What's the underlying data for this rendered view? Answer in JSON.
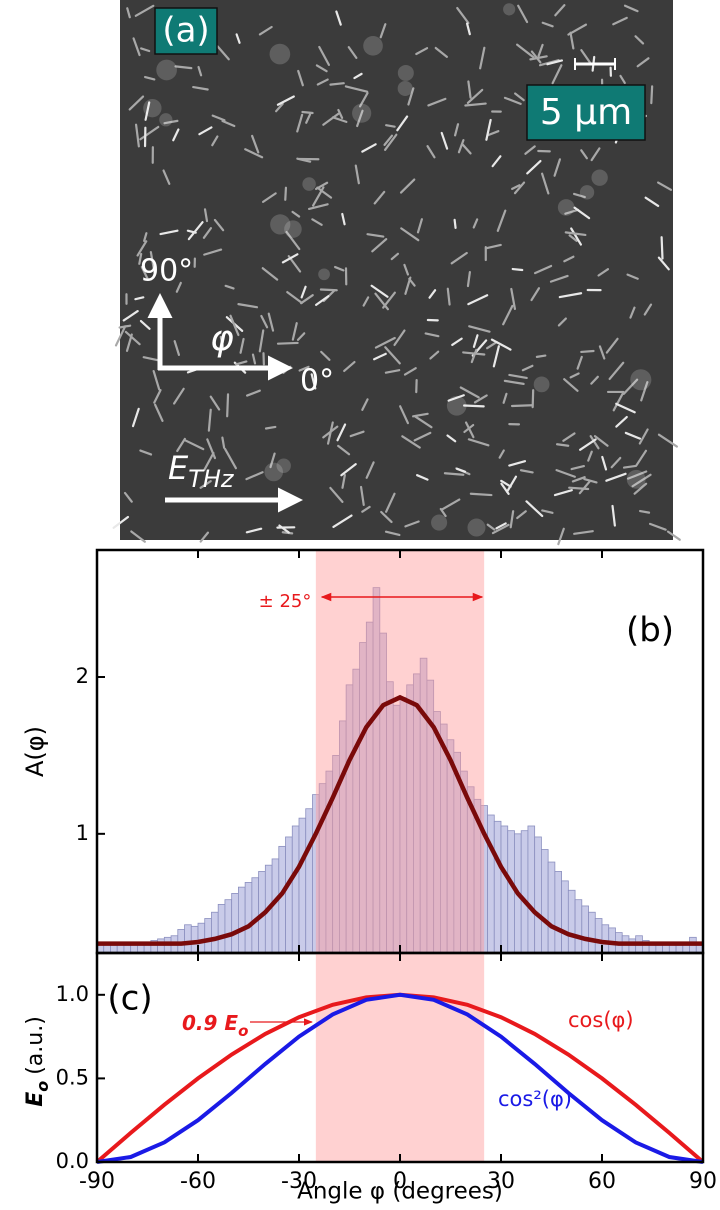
{
  "image_panel": {
    "label": "(a)",
    "scale_bar": "5 μm",
    "axis_90": "90°",
    "axis_phi": "φ",
    "axis_0": "0°",
    "field": "E",
    "field_subscript": "THz"
  },
  "chart_data": [
    {
      "type": "histogram",
      "label": "(b)",
      "y_label": "A(φ)",
      "annotation": "± 25°",
      "highlight": [
        -25,
        25
      ],
      "highlight_color": "#ff9a9a",
      "annotation_color": "#e8191c",
      "bins": [
        -90,
        -88,
        -86,
        -84,
        -82,
        -80,
        -78,
        -76,
        -74,
        -72,
        -70,
        -68,
        -66,
        -64,
        -62,
        -60,
        -58,
        -56,
        -54,
        -52,
        -50,
        -48,
        -46,
        -44,
        -42,
        -40,
        -38,
        -36,
        -34,
        -32,
        -30,
        -28,
        -26,
        -24,
        -22,
        -20,
        -18,
        -16,
        -14,
        -12,
        -10,
        -8,
        -6,
        -4,
        -2,
        0,
        2,
        4,
        6,
        8,
        10,
        12,
        14,
        16,
        18,
        20,
        22,
        24,
        26,
        28,
        30,
        32,
        34,
        36,
        38,
        40,
        42,
        44,
        46,
        48,
        50,
        52,
        54,
        56,
        58,
        60,
        62,
        64,
        66,
        68,
        70,
        72,
        74,
        76,
        78,
        80,
        82,
        84,
        86,
        88,
        90
      ],
      "values": [
        0.3,
        0.3,
        0.29,
        0.3,
        0.29,
        0.3,
        0.31,
        0.3,
        0.32,
        0.33,
        0.34,
        0.35,
        0.39,
        0.42,
        0.41,
        0.43,
        0.46,
        0.5,
        0.55,
        0.58,
        0.62,
        0.66,
        0.69,
        0.72,
        0.76,
        0.8,
        0.84,
        0.92,
        0.98,
        1.05,
        1.1,
        1.16,
        1.25,
        1.32,
        1.4,
        1.5,
        1.72,
        1.95,
        2.05,
        2.22,
        2.35,
        2.57,
        2.28,
        1.97,
        1.82,
        1.87,
        1.95,
        2.02,
        2.12,
        1.98,
        1.78,
        1.7,
        1.6,
        1.52,
        1.4,
        1.3,
        1.22,
        1.18,
        1.12,
        1.08,
        1.05,
        1.02,
        1.0,
        1.02,
        1.05,
        0.98,
        0.9,
        0.82,
        0.76,
        0.7,
        0.64,
        0.58,
        0.54,
        0.5,
        0.46,
        0.42,
        0.4,
        0.37,
        0.35,
        0.33,
        0.35,
        0.32,
        0.31,
        0.3,
        0.3,
        0.31,
        0.29,
        0.3,
        0.34,
        0.3
      ],
      "color": "#c9cbe9",
      "edge_color": "#8b8fbf",
      "fit": {
        "x": [
          -90,
          -85,
          -80,
          -75,
          -70,
          -65,
          -60,
          -55,
          -50,
          -45,
          -40,
          -35,
          -30,
          -25,
          -20,
          -15,
          -10,
          -5,
          0,
          5,
          10,
          15,
          20,
          25,
          30,
          35,
          40,
          45,
          50,
          55,
          60,
          65,
          70,
          75,
          80,
          85,
          90
        ],
        "values": [
          0.3,
          0.3,
          0.3,
          0.3,
          0.3,
          0.3,
          0.31,
          0.33,
          0.36,
          0.41,
          0.5,
          0.62,
          0.79,
          1.0,
          1.23,
          1.47,
          1.68,
          1.82,
          1.87,
          1.82,
          1.68,
          1.47,
          1.23,
          1.0,
          0.79,
          0.62,
          0.5,
          0.41,
          0.36,
          0.33,
          0.31,
          0.3,
          0.3,
          0.3,
          0.3,
          0.3,
          0.3
        ],
        "color": "#7a0a0a"
      },
      "xlim": [
        -90,
        90
      ],
      "xticks": [
        -90,
        -60,
        -30,
        0,
        30,
        60,
        90
      ],
      "ylim": [
        0.24,
        2.81
      ],
      "yticks": [
        1,
        2
      ]
    },
    {
      "type": "line",
      "label": "(c)",
      "y_label": {
        "symbol": "E",
        "subscript": "o",
        "unit": "(a.u.)"
      },
      "x_label": "Angle φ (degrees)",
      "annotation": {
        "text": "0.9 E",
        "subscript": "o"
      },
      "highlight": [
        -25,
        25
      ],
      "highlight_color": "#ff9a9a",
      "x": [
        -90,
        -80,
        -70,
        -60,
        -50,
        -40,
        -30,
        -20,
        -10,
        0,
        10,
        20,
        30,
        40,
        50,
        60,
        70,
        80,
        90
      ],
      "series": [
        {
          "name": "cos(φ)",
          "color": "#e8191c",
          "values": [
            0,
            0.174,
            0.342,
            0.5,
            0.643,
            0.766,
            0.866,
            0.94,
            0.985,
            1,
            0.985,
            0.94,
            0.866,
            0.766,
            0.643,
            0.5,
            0.342,
            0.174,
            0
          ]
        },
        {
          "name": "cos²(φ)",
          "color": "#1a1ae6",
          "values": [
            0,
            0.03,
            0.117,
            0.25,
            0.413,
            0.587,
            0.75,
            0.883,
            0.97,
            1,
            0.97,
            0.883,
            0.75,
            0.587,
            0.413,
            0.25,
            0.117,
            0.03,
            0
          ]
        }
      ],
      "xlim": [
        -90,
        90
      ],
      "xticks": [
        -90,
        -60,
        -30,
        0,
        30,
        60,
        90
      ],
      "ylim": [
        0,
        1.25
      ],
      "yticks": [
        {
          "value": 0,
          "label": "0.0"
        },
        0.5,
        {
          "value": 1,
          "label": "1.0"
        }
      ]
    }
  ]
}
